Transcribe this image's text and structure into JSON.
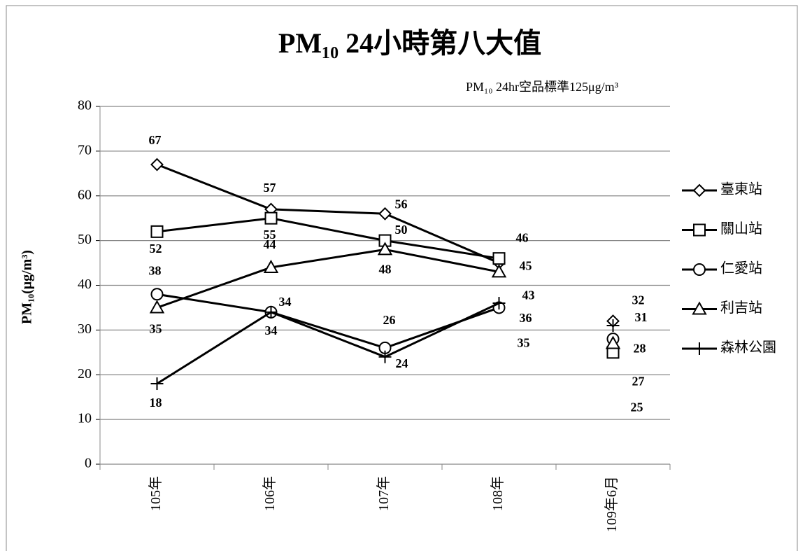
{
  "chart_data": {
    "type": "line",
    "title": "PM₁₀ 24小時第八大值",
    "subtitle": "PM₁₀ 24hr空品標準125μg/m³",
    "y_label": "PM₁₀(μg/m³)",
    "categories": [
      "105年",
      "106年",
      "107年",
      "108年",
      "109年6月"
    ],
    "line_break_before": 4,
    "series": [
      {
        "name": "臺東站",
        "color": "#000000",
        "marker": "diamond",
        "values": [
          67,
          57,
          56,
          45,
          32
        ]
      },
      {
        "name": "關山站",
        "color": "#000000",
        "marker": "square",
        "values": [
          52,
          55,
          50,
          46,
          25
        ]
      },
      {
        "name": "仁愛站",
        "color": "#000000",
        "marker": "circle",
        "values": [
          38,
          34,
          26,
          35,
          28
        ]
      },
      {
        "name": "利吉站",
        "color": "#000000",
        "marker": "triangle",
        "values": [
          35,
          44,
          48,
          43,
          27
        ]
      },
      {
        "name": "森林公園",
        "color": "#000000",
        "marker": "plus",
        "values": [
          18,
          34,
          24,
          36,
          31
        ]
      }
    ],
    "ylim": [
      0,
      80
    ],
    "yticks": [
      0,
      10,
      20,
      30,
      40,
      50,
      60,
      70,
      80
    ],
    "grid": true,
    "legend": "right"
  }
}
